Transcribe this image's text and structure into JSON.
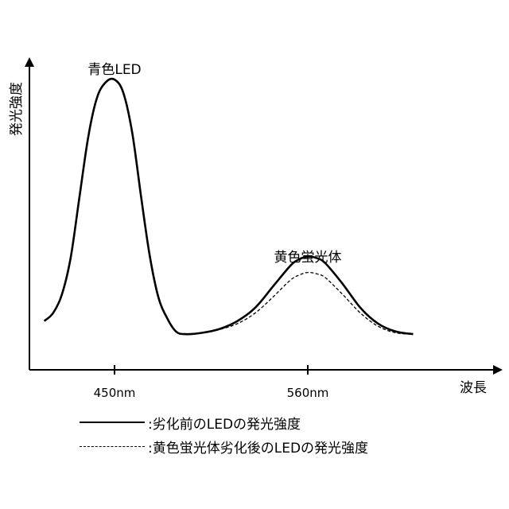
{
  "chart_data": {
    "type": "line",
    "ylabel": "発光強度",
    "xlabel": "波長",
    "x_ticks": [
      "450nm",
      "560nm"
    ],
    "x_tick_values": [
      450,
      560
    ],
    "xlim": [
      400,
      620
    ],
    "ylim": [
      0,
      1.0
    ],
    "annotations": [
      "青色LED",
      "黄色蛍光体"
    ],
    "series": [
      {
        "name": "劣化前のLEDの発光強度",
        "style": "solid",
        "x": [
          410,
          415,
          420,
          425,
          430,
          435,
          440,
          445,
          450,
          455,
          460,
          465,
          470,
          475,
          480,
          485,
          490,
          500,
          510,
          520,
          530,
          540,
          550,
          555,
          560,
          565,
          570,
          580,
          590,
          600,
          610,
          620
        ],
        "y": [
          0.08,
          0.11,
          0.18,
          0.32,
          0.55,
          0.78,
          0.93,
          0.99,
          1.0,
          0.95,
          0.8,
          0.56,
          0.33,
          0.17,
          0.09,
          0.04,
          0.03,
          0.035,
          0.05,
          0.08,
          0.13,
          0.21,
          0.29,
          0.315,
          0.325,
          0.32,
          0.3,
          0.22,
          0.13,
          0.07,
          0.04,
          0.03
        ]
      },
      {
        "name": "黄色蛍光体劣化後のLEDの発光強度",
        "style": "dashed",
        "x": [
          490,
          500,
          510,
          520,
          530,
          540,
          550,
          555,
          560,
          565,
          570,
          580,
          590,
          600,
          610,
          620
        ],
        "y": [
          0.03,
          0.035,
          0.048,
          0.07,
          0.11,
          0.17,
          0.235,
          0.255,
          0.265,
          0.26,
          0.245,
          0.18,
          0.11,
          0.06,
          0.035,
          0.03
        ]
      }
    ],
    "legend": [
      {
        "style": "solid",
        "label": ":劣化前のLEDの発光強度"
      },
      {
        "style": "dashed",
        "label": ":黄色蛍光体劣化後のLEDの発光強度"
      }
    ],
    "colors": {
      "line": "#000000",
      "background": "#ffffff"
    }
  }
}
